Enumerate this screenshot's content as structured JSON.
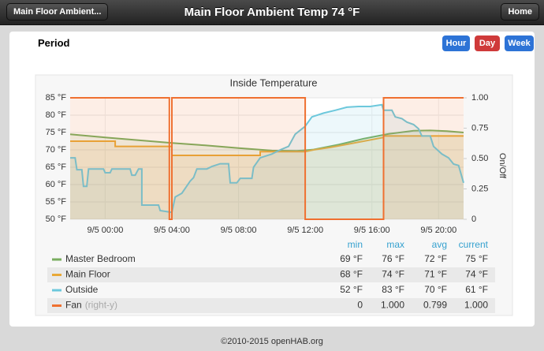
{
  "header": {
    "back_button": "Main Floor Ambient...",
    "title": "Main Floor Ambient Temp 74 °F",
    "home_button": "Home"
  },
  "period": {
    "label": "Period",
    "buttons": [
      "Hour",
      "Day",
      "Week"
    ]
  },
  "chart_data": {
    "type": "line",
    "title": "Inside Temperature",
    "y2_label": "On/Off",
    "xlim": [
      -2.1,
      21.5
    ],
    "xticks": [
      {
        "value": 0,
        "label": "9/5 00:00"
      },
      {
        "value": 4,
        "label": "9/5 04:00"
      },
      {
        "value": 8,
        "label": "9/5 08:00"
      },
      {
        "value": 12,
        "label": "9/5 12:00"
      },
      {
        "value": 16,
        "label": "9/5 16:00"
      },
      {
        "value": 20,
        "label": "9/5 20:00"
      }
    ],
    "ylim": [
      50,
      85
    ],
    "yticks": [
      {
        "value": 50,
        "label": "50 °F"
      },
      {
        "value": 55,
        "label": "55 °F"
      },
      {
        "value": 60,
        "label": "60 °F"
      },
      {
        "value": 65,
        "label": "65 °F"
      },
      {
        "value": 70,
        "label": "70 °F"
      },
      {
        "value": 75,
        "label": "75 °F"
      },
      {
        "value": 80,
        "label": "80 °F"
      },
      {
        "value": 85,
        "label": "85 °F"
      }
    ],
    "y2lim": [
      0,
      1
    ],
    "y2ticks": [
      0,
      0.25,
      {
        "value": 0.5,
        "label": "0.50"
      },
      0.75,
      {
        "value": 1,
        "label": "1.00"
      }
    ],
    "grid": true,
    "area": true,
    "stats_headers": [
      "min",
      "max",
      "avg",
      "current"
    ],
    "series": [
      {
        "name": "Master Bedroom",
        "color": "#79ad5f",
        "x": [
          -2.1,
          0,
          2,
          4,
          6,
          8,
          10,
          11.5,
          12.5,
          14,
          15.5,
          17,
          18.5,
          19.5,
          20.5,
          21.5
        ],
        "values": [
          74.5,
          73.6,
          72.8,
          72,
          71.3,
          70.5,
          69.8,
          69.7,
          70.1,
          71.5,
          73.2,
          74.6,
          75.5,
          75.6,
          75.4,
          75
        ],
        "stats": [
          "69 °F",
          "76 °F",
          "72 °F",
          "75 °F"
        ]
      },
      {
        "name": "Main Floor",
        "color": "#e8a837",
        "x": [
          -2.1,
          0.6,
          0.6,
          4,
          4,
          9.3,
          9.3,
          12,
          12.5,
          13.5,
          14.5,
          15.5,
          16.7,
          16.7,
          21.5
        ],
        "values": [
          72.5,
          72.5,
          71,
          71,
          68.4,
          68.4,
          69.5,
          69.5,
          70,
          70.7,
          71.6,
          72.5,
          73.6,
          74,
          74
        ],
        "stats": [
          "68 °F",
          "74 °F",
          "71 °F",
          "74 °F"
        ]
      },
      {
        "name": "Outside",
        "color": "#6cc8dc",
        "x": [
          -2.1,
          -1.8,
          -1.7,
          -1.4,
          -1.3,
          -1.1,
          -1.0,
          -0.1,
          0,
          0.3,
          0.4,
          1.5,
          1.6,
          1.8,
          2.0,
          2.2,
          2.2,
          3.2,
          3.3,
          4.0,
          4.2,
          4.6,
          5.1,
          5.3,
          5.5,
          6.1,
          6.4,
          6.9,
          7.4,
          7.5,
          7.9,
          8.1,
          8.8,
          8.9,
          9.3,
          10.0,
          10.5,
          11.0,
          11.4,
          12.0,
          12.4,
          13.1,
          13.8,
          14.5,
          15.2,
          15.9,
          16.6,
          16.7,
          17.2,
          17.4,
          17.8,
          18.1,
          18.5,
          18.8,
          19.0,
          19.5,
          19.7,
          20.2,
          20.6,
          20.9,
          21.2,
          21.5
        ],
        "values": [
          67.7,
          67.7,
          64.3,
          64.3,
          59.5,
          59.5,
          64.5,
          64.5,
          63.4,
          63.4,
          64.5,
          64.5,
          62.7,
          62.7,
          64.5,
          64.5,
          54.1,
          54.1,
          52.5,
          52,
          56.4,
          57.5,
          61,
          62,
          64.5,
          64.5,
          65.2,
          66,
          66,
          60.5,
          60.5,
          61.8,
          61.8,
          65,
          67.7,
          68.8,
          70,
          71,
          74.5,
          76.8,
          79.5,
          80.6,
          81.4,
          82.3,
          82.5,
          82.5,
          83,
          81.4,
          81.4,
          79.5,
          79,
          78,
          77.3,
          76.1,
          74,
          74,
          71,
          68.8,
          67.7,
          65.9,
          65.5,
          60.5
        ],
        "stats": [
          "52 °F",
          "83 °F",
          "70 °F",
          "61 °F"
        ]
      },
      {
        "name": "Fan",
        "note": "(right-y)",
        "axis": "y2",
        "color": "#ef7030",
        "x": [
          -2.1,
          3.85,
          3.85,
          4.0,
          4.0,
          12,
          12,
          16.7,
          16.7,
          21.5
        ],
        "values": [
          1,
          1,
          0,
          0,
          1,
          1,
          0,
          0,
          1,
          1
        ],
        "stats": [
          "0",
          "1.000",
          "0.799",
          "1.000"
        ]
      }
    ]
  },
  "footer": "©2010-2015 openHAB.org"
}
